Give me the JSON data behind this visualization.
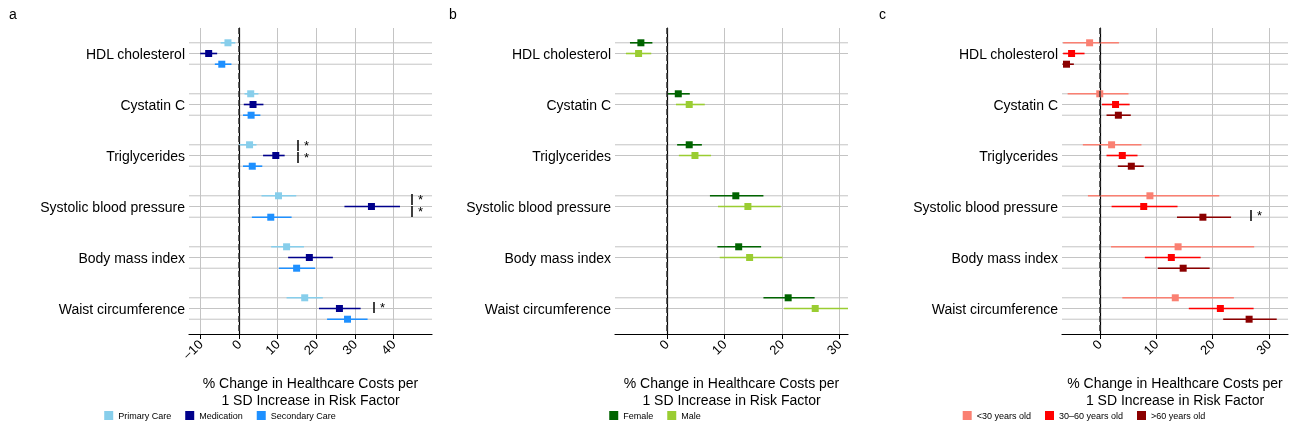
{
  "chart_data": [
    {
      "type": "scatter",
      "title": "a",
      "orientation": "horizontal",
      "marker": "square",
      "xlabel": "% Change in Healthcare Costs per 1 SD Increase in Risk Factor",
      "categories": [
        "HDL cholesterol",
        "Cystatin C",
        "Triglycerides",
        "Systolic blood pressure",
        "Body mass index",
        "Waist circumference"
      ],
      "xlim": [
        -13,
        50
      ],
      "xticks": [
        {
          "value": -10,
          "label": "−10"
        },
        0,
        10,
        20,
        30,
        40
      ],
      "grid": true,
      "legend": "bottom",
      "series": [
        {
          "name": "Primary Care",
          "color": "#87ceeb",
          "values": [
            -2.9,
            3.0,
            2.7,
            10.2,
            12.3,
            17.0
          ],
          "errors": [
            [
              -4.8,
              -1.0
            ],
            [
              1.4,
              5.0
            ],
            [
              0.0,
              4.5
            ],
            [
              5.8,
              14.8
            ],
            [
              8.3,
              16.8
            ],
            [
              12.3,
              21.7
            ]
          ]
        },
        {
          "name": "Medication",
          "color": "#00008b",
          "values": [
            -7.9,
            3.6,
            9.5,
            34.3,
            18.2,
            26.0
          ],
          "errors": [
            [
              -10.1,
              -5.7
            ],
            [
              1.2,
              6.3
            ],
            [
              6.2,
              11.8
            ],
            [
              27.3,
              41.7
            ],
            [
              12.7,
              24.3
            ],
            [
              20.7,
              31.5
            ]
          ]
        },
        {
          "name": "Secondary Care",
          "color": "#1e90ff",
          "values": [
            -4.5,
            3.1,
            3.4,
            8.2,
            14.9,
            28.1
          ],
          "errors": [
            [
              -6.3,
              -2.0
            ],
            [
              1.0,
              5.5
            ],
            [
              1.0,
              6.0
            ],
            [
              3.3,
              13.6
            ],
            [
              10.3,
              19.7
            ],
            [
              22.8,
              33.3
            ]
          ]
        }
      ],
      "ref_lines": [
        {
          "axis": "x",
          "value": 0,
          "color": "#333333",
          "line_style": "dashed"
        }
      ],
      "annotations": [
        "*",
        "*",
        "*",
        "*",
        "*"
      ]
    },
    {
      "type": "scatter",
      "title": "b",
      "orientation": "horizontal",
      "marker": "square",
      "xlabel": "% Change in Healthcare Costs per 1 SD Increase in Risk Factor",
      "categories": [
        "HDL cholesterol",
        "Cystatin C",
        "Triglycerides",
        "Systolic blood pressure",
        "Body mass index",
        "Waist circumference"
      ],
      "xlim": [
        -9,
        31.5
      ],
      "xticks": [
        0,
        10,
        20,
        30
      ],
      "grid": true,
      "legend": "bottom",
      "series": [
        {
          "name": "Female",
          "color": "#006400",
          "values": [
            -4.5,
            2.0,
            3.9,
            12.0,
            12.5,
            21.1
          ],
          "errors": [
            [
              -6.4,
              -2.5
            ],
            [
              0.2,
              4.0
            ],
            [
              1.8,
              6.1
            ],
            [
              7.5,
              16.8
            ],
            [
              8.8,
              16.4
            ],
            [
              16.8,
              25.7
            ]
          ]
        },
        {
          "name": "Male",
          "color": "#9acd32",
          "values": [
            -4.9,
            3.9,
            4.9,
            14.1,
            14.4,
            25.8
          ],
          "errors": [
            [
              -7.1,
              -2.7
            ],
            [
              1.6,
              6.6
            ],
            [
              2.1,
              7.7
            ],
            [
              8.9,
              19.8
            ],
            [
              9.2,
              20.1
            ],
            [
              20.4,
              31.5
            ]
          ]
        }
      ],
      "ref_lines": [
        {
          "axis": "x",
          "value": 0,
          "color": "#333333",
          "line_style": "dashed"
        }
      ]
    },
    {
      "type": "scatter",
      "title": "c",
      "orientation": "horizontal",
      "marker": "square",
      "xlabel": "% Change in Healthcare Costs per 1 SD Increase in Risk Factor",
      "categories": [
        "HDL cholesterol",
        "Cystatin C",
        "Triglycerides",
        "Systolic blood pressure",
        "Body mass index",
        "Waist circumference"
      ],
      "xlim": [
        -6.7,
        33.4
      ],
      "xticks": [
        0,
        10,
        20,
        30
      ],
      "grid": true,
      "legend": "bottom",
      "series": [
        {
          "name": "<30 years old",
          "color": "#fa8072",
          "values": [
            -1.8,
            0.0,
            2.1,
            8.9,
            13.9,
            13.4
          ],
          "errors": [
            [
              -6.5,
              3.4
            ],
            [
              -5.7,
              5.1
            ],
            [
              -3.0,
              7.4
            ],
            [
              -2.1,
              21.2
            ],
            [
              2.0,
              27.4
            ],
            [
              4.0,
              23.8
            ]
          ]
        },
        {
          "name": "30–60 years old",
          "color": "#ff0000",
          "values": [
            -5.0,
            2.8,
            4.0,
            7.8,
            12.7,
            21.4
          ],
          "errors": [
            [
              -6.5,
              -2.7
            ],
            [
              0.4,
              5.3
            ],
            [
              1.2,
              6.7
            ],
            [
              2.1,
              13.8
            ],
            [
              8.0,
              17.9
            ],
            [
              15.8,
              27.3
            ]
          ]
        },
        {
          "name": ">60 years old",
          "color": "#8b0000",
          "values": [
            -5.9,
            3.3,
            5.6,
            18.3,
            14.8,
            26.5
          ],
          "errors": [
            [
              -6.6,
              -4.6
            ],
            [
              1.2,
              5.5
            ],
            [
              3.2,
              7.8
            ],
            [
              13.7,
              23.3
            ],
            [
              10.3,
              19.5
            ],
            [
              21.9,
              31.4
            ]
          ]
        }
      ],
      "ref_lines": [
        {
          "axis": "x",
          "value": 0,
          "color": "#333333",
          "line_style": "dashed"
        }
      ],
      "annotations": [
        "*"
      ]
    }
  ]
}
